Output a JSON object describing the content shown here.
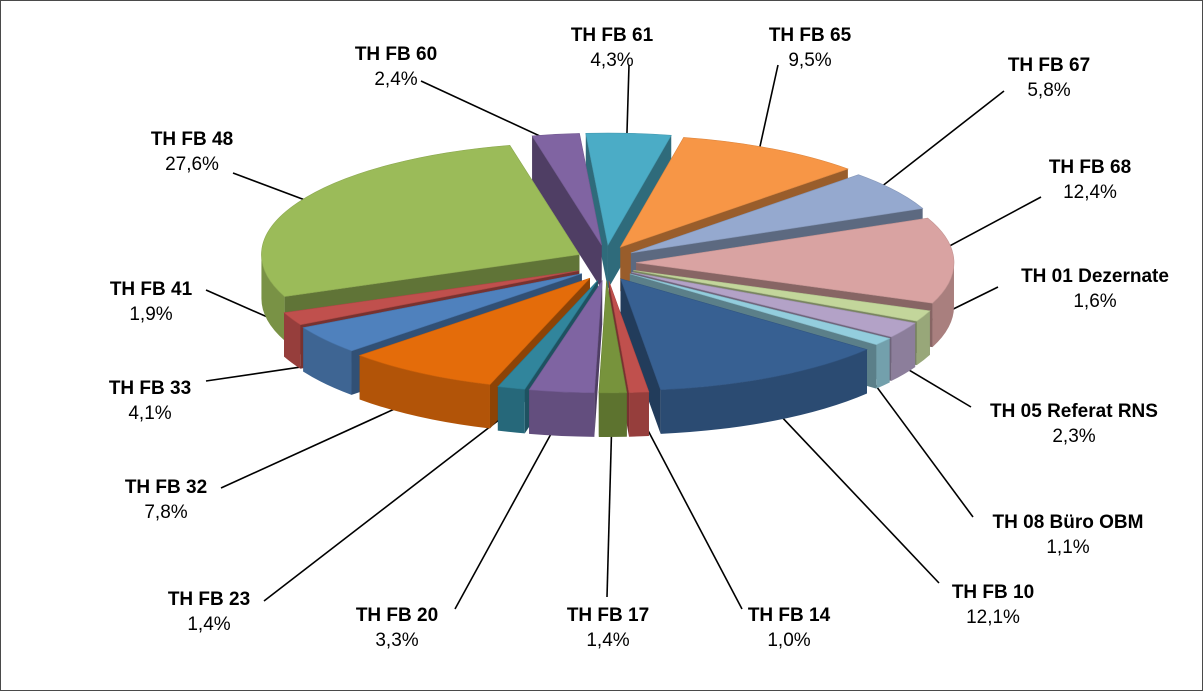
{
  "chart_data": {
    "type": "pie",
    "style": "3d-exploded",
    "legend": "none",
    "slices": [
      {
        "label": "TH FB 61",
        "value": 4.3,
        "value_text": "4,3%",
        "color": "#4bacc6"
      },
      {
        "label": "TH FB 65",
        "value": 9.5,
        "value_text": "9,5%",
        "color": "#f79646"
      },
      {
        "label": "TH FB 67",
        "value": 5.8,
        "value_text": "5,8%",
        "color": "#95a9cf"
      },
      {
        "label": "TH FB 68",
        "value": 12.4,
        "value_text": "12,4%",
        "color": "#d9a3a2"
      },
      {
        "label": "TH 01 Dezernate",
        "value": 1.6,
        "value_text": "1,6%",
        "color": "#c3d69b"
      },
      {
        "label": "TH 05 Referat RNS",
        "value": 2.3,
        "value_text": "2,3%",
        "color": "#b3a2c7"
      },
      {
        "label": "TH 08 Büro OBM",
        "value": 1.1,
        "value_text": "1,1%",
        "color": "#93cddd"
      },
      {
        "label": "TH FB 10",
        "value": 12.1,
        "value_text": "12,1%",
        "color": "#376092"
      },
      {
        "label": "TH FB 14",
        "value": 1.0,
        "value_text": "1,0%",
        "color": "#c0504d"
      },
      {
        "label": "TH FB 17",
        "value": 1.4,
        "value_text": "1,4%",
        "color": "#77933c"
      },
      {
        "label": "TH FB 20",
        "value": 3.3,
        "value_text": "3,3%",
        "color": "#7f64a2"
      },
      {
        "label": "TH FB 23",
        "value": 1.4,
        "value_text": "1,4%",
        "color": "#31859c"
      },
      {
        "label": "TH FB 32",
        "value": 7.8,
        "value_text": "7,8%",
        "color": "#e46c0a"
      },
      {
        "label": "TH FB 33",
        "value": 4.1,
        "value_text": "4,1%",
        "color": "#4f81bd"
      },
      {
        "label": "TH FB 41",
        "value": 1.9,
        "value_text": "1,9%",
        "color": "#c0504d"
      },
      {
        "label": "TH FB 48",
        "value": 27.6,
        "value_text": "27,6%",
        "color": "#9bbb59"
      },
      {
        "label": "TH FB 60",
        "value": 2.4,
        "value_text": "2,4%",
        "color": "#8064a2"
      }
    ]
  }
}
